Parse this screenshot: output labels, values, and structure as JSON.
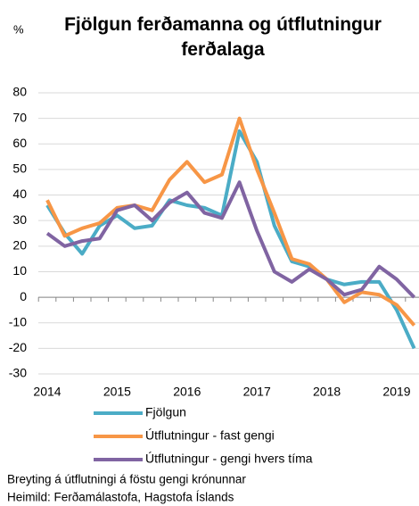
{
  "chart_data": {
    "type": "line",
    "title": "Fjölgun ferðamanna og útflutningur ferðalaga",
    "y_label": "%",
    "categories": [
      "2014",
      null,
      null,
      null,
      "2015",
      null,
      null,
      null,
      "2016",
      null,
      null,
      null,
      "2017",
      null,
      null,
      null,
      "2018",
      null,
      null,
      null,
      "2019",
      null
    ],
    "series": [
      {
        "name": "Fjölgun",
        "color": "#4bacc6",
        "values": [
          36,
          25,
          17,
          28,
          32,
          27,
          28,
          38,
          36,
          35,
          32,
          65,
          53,
          28,
          14,
          12,
          7,
          5,
          6,
          6,
          -5,
          -20
        ]
      },
      {
        "name": "Útflutningur - fast gengi",
        "color": "#f79646",
        "values": [
          38,
          24,
          27,
          29,
          35,
          36,
          34,
          46,
          53,
          45,
          48,
          70,
          50,
          33,
          15,
          13,
          7,
          -2,
          2,
          1,
          -3,
          -11
        ]
      },
      {
        "name": "Útflutningur - gengi hvers tíma",
        "color": "#8064a2",
        "values": [
          25,
          20,
          22,
          23,
          34,
          36,
          30,
          37,
          41,
          33,
          31,
          45,
          26,
          10,
          6,
          11,
          7,
          1,
          3,
          12,
          7,
          0
        ]
      }
    ],
    "ylim": [
      -30,
      80
    ],
    "yticks": [
      -30,
      -20,
      -10,
      0,
      10,
      20,
      30,
      40,
      50,
      60,
      70,
      80
    ],
    "grid": true,
    "notes": [
      "Breyting á útflutningi á föstu gengi krónunnar",
      "Heimild: Ferðamálastofa, Hagstofa Íslands"
    ]
  }
}
